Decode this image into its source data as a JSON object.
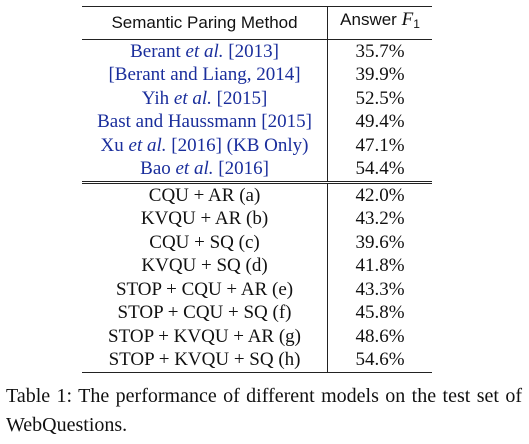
{
  "table": {
    "header": {
      "method": "Semantic Paring Method",
      "answer_prefix": "Answer ",
      "answer_var": "F",
      "answer_sub": "1"
    },
    "baselines": [
      {
        "pre": "Berant ",
        "ital": "et al.",
        "post": " [2013]",
        "score": "35.7%"
      },
      {
        "pre": "[Berant and Liang, 2014]",
        "ital": "",
        "post": "",
        "score": "39.9%"
      },
      {
        "pre": "Yih ",
        "ital": "et al.",
        "post": " [2015]",
        "score": "52.5%"
      },
      {
        "pre": "Bast and Haussmann [2015]",
        "ital": "",
        "post": "",
        "score": "49.4%"
      },
      {
        "pre": "Xu ",
        "ital": "et al.",
        "post": " [2016] (KB Only)",
        "score": "47.1%"
      },
      {
        "pre": "Bao ",
        "ital": "et al.",
        "post": " [2016]",
        "score": "54.4%"
      }
    ],
    "ours": [
      {
        "method": "CQU + AR (a)",
        "score": "42.0%"
      },
      {
        "method": "KVQU + AR (b)",
        "score": "43.2%"
      },
      {
        "method": "CQU + SQ (c)",
        "score": "39.6%"
      },
      {
        "method": "KVQU + SQ (d)",
        "score": "41.8%"
      },
      {
        "method": "STOP + CQU + AR (e)",
        "score": "43.3%"
      },
      {
        "method": "STOP + CQU + SQ (f)",
        "score": "45.8%"
      },
      {
        "method": "STOP + KVQU + AR (g)",
        "score": "48.6%"
      },
      {
        "method": "STOP + KVQU + SQ (h)",
        "score": "54.6%"
      }
    ]
  },
  "caption": "Table 1: The performance of different models on the test set of WebQuestions."
}
